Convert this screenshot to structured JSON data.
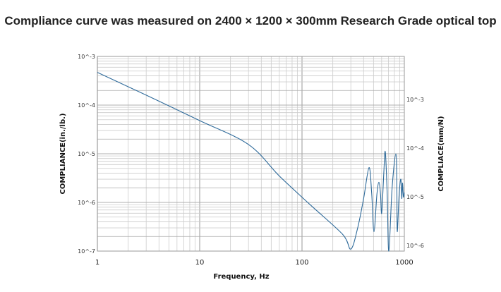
{
  "chart_data": {
    "type": "line",
    "title": "Compliance curve was measured on 2400 × 1200 × 300mm Research Grade optical top",
    "xlabel": "Frequency, Hz",
    "ylabel": "COMPLIANCE(in./lb.)",
    "ylabel_right": "COMPLIACE(mm/N)",
    "x_scale": "log",
    "y_scale": "log",
    "xlim": [
      1,
      1000
    ],
    "ylim": [
      1e-07,
      0.001
    ],
    "x_ticks": [
      "1",
      "10",
      "100",
      "1000"
    ],
    "y_ticks_left": [
      "10^-7",
      "10^-6",
      "10^-5",
      "10^-4",
      "10^-3"
    ],
    "y_ticks_right": [
      "10^-6",
      "10^-5",
      "10^-4",
      "10^-3"
    ],
    "grid": true,
    "line_color": "#2e6a9a",
    "series": [
      {
        "name": "compliance",
        "x": [
          1,
          3,
          10,
          30,
          60,
          120,
          250,
          300,
          350,
          400,
          452,
          480,
          505,
          540,
          565,
          585,
          601,
          630,
          651,
          680,
          705,
          760,
          827,
          845,
          853,
          890,
          925,
          945,
          960,
          980,
          1000
        ],
        "y": [
          0.00047,
          0.00016,
          4.8e-05,
          1.55e-05,
          3.5e-06,
          9e-07,
          2.2e-07,
          1.1e-07,
          3e-07,
          1.2e-06,
          5.2e-06,
          1.5e-06,
          2.5e-07,
          1.5e-06,
          2.6e-06,
          1.5e-06,
          6e-07,
          4e-06,
          1.1e-05,
          1.5e-06,
          1e-07,
          2e-06,
          1e-05,
          2e-06,
          2.5e-07,
          1.5e-06,
          3e-06,
          1.2e-06,
          2.5e-06,
          1.3e-06,
          1.6e-06
        ]
      }
    ]
  }
}
